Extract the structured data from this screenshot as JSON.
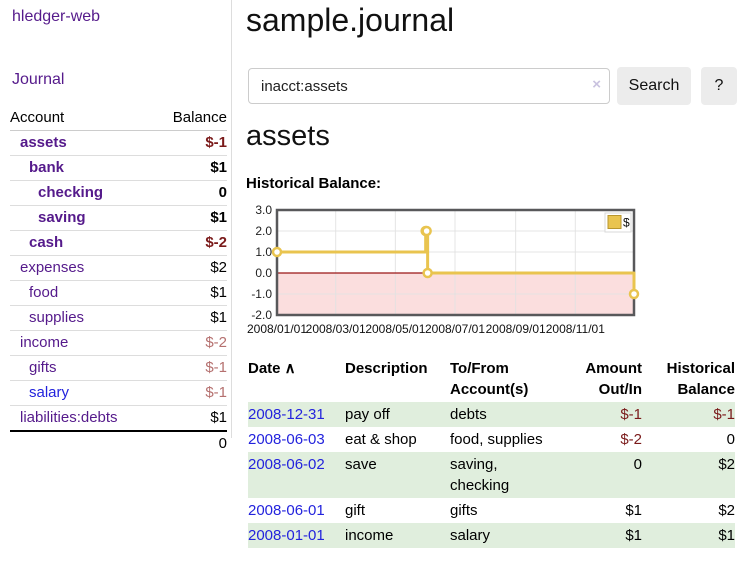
{
  "colors": {
    "link_purple": "#551a8b",
    "link_blue": "#2323dd",
    "negative_dark": "#7a1a1a",
    "negative_light": "#b5706f",
    "row_green": "#e0eedd",
    "chart_line_gold": "#e9c44f",
    "chart_negative_fill": "#fbdede",
    "chart_zero_line": "#9a1616",
    "chart_border": "#58585a",
    "chart_grid": "#e2e2e2"
  },
  "app_title": "hledger-web",
  "sidebar": {
    "journal_link": "Journal",
    "table": {
      "account_header": "Account",
      "balance_header": "Balance",
      "rows": [
        {
          "name": "assets",
          "indent": 1,
          "bold": true,
          "link_color": "#551a8b",
          "balance": "$-1",
          "balance_color": "#7a1a1a",
          "balance_bold": true
        },
        {
          "name": "bank",
          "indent": 2,
          "bold": true,
          "link_color": "#551a8b",
          "balance": "$1",
          "balance_color": "#000000",
          "balance_bold": true
        },
        {
          "name": "checking",
          "indent": 3,
          "bold": true,
          "link_color": "#551a8b",
          "balance": "0",
          "balance_color": "#000000",
          "balance_bold": true
        },
        {
          "name": "saving",
          "indent": 3,
          "bold": true,
          "link_color": "#551a8b",
          "balance": "$1",
          "balance_color": "#000000",
          "balance_bold": true
        },
        {
          "name": "cash",
          "indent": 2,
          "bold": true,
          "link_color": "#551a8b",
          "balance": "$-2",
          "balance_color": "#7a1a1a",
          "balance_bold": true
        },
        {
          "name": "expenses",
          "indent": 1,
          "bold": false,
          "link_color": "#551a8b",
          "balance": "$2",
          "balance_color": "#000000",
          "balance_bold": false
        },
        {
          "name": "food",
          "indent": 2,
          "bold": false,
          "link_color": "#551a8b",
          "balance": "$1",
          "balance_color": "#000000",
          "balance_bold": false
        },
        {
          "name": "supplies",
          "indent": 2,
          "bold": false,
          "link_color": "#551a8b",
          "balance": "$1",
          "balance_color": "#000000",
          "balance_bold": false
        },
        {
          "name": "income",
          "indent": 1,
          "bold": false,
          "link_color": "#551a8b",
          "balance": "$-2",
          "balance_color": "#b5706f",
          "balance_bold": false
        },
        {
          "name": "gifts",
          "indent": 2,
          "bold": false,
          "link_color": "#551a8b",
          "balance": "$-1",
          "balance_color": "#b5706f",
          "balance_bold": false
        },
        {
          "name": "salary",
          "indent": 2,
          "bold": false,
          "link_color": "#2323dd",
          "balance": "$-1",
          "balance_color": "#b5706f",
          "balance_bold": false
        },
        {
          "name": "liabilities:debts",
          "indent": 1,
          "bold": false,
          "link_color": "#551a8b",
          "balance": "$1",
          "balance_color": "#000000",
          "balance_bold": false
        }
      ],
      "total": "0"
    }
  },
  "main": {
    "title": "sample.journal",
    "search": {
      "value": "inacct:assets",
      "clear_icon": "×",
      "search_button": "Search",
      "help_button": "?"
    },
    "account_heading": "assets",
    "chart_title": "Historical Balance:"
  },
  "chart_data": {
    "type": "line",
    "step": "after",
    "title": "Historical Balance",
    "series": [
      {
        "name": "$",
        "points": [
          {
            "x": "2008-01-01",
            "y": 1
          },
          {
            "x": "2008-06-01",
            "y": 2
          },
          {
            "x": "2008-06-02",
            "y": 2
          },
          {
            "x": "2008-06-03",
            "y": 0
          },
          {
            "x": "2008-12-31",
            "y": -1
          }
        ]
      }
    ],
    "x_start": "2008-01-01",
    "x_end": "2008-12-31",
    "x_ticks": [
      "2008/01/01",
      "2008/03/01",
      "2008/05/01",
      "2008/07/01",
      "2008/09/01",
      "2008/11/01"
    ],
    "y_ticks": [
      3.0,
      2.0,
      1.0,
      0.0,
      -1.0,
      -2.0
    ],
    "y_tick_labels": [
      "3.0",
      "2.0",
      "1.0",
      "0.0",
      "-1.0",
      "-2.0"
    ],
    "ylim": [
      -2,
      3
    ],
    "grid": true,
    "negative_region_shaded": true,
    "legend": {
      "position": "top-right",
      "entries": [
        "$"
      ]
    }
  },
  "register": {
    "columns": [
      {
        "label": "Date",
        "sort_icon": "∧",
        "align": "left"
      },
      {
        "label": "Description",
        "align": "left"
      },
      {
        "label": "To/From Account(s)",
        "align": "left"
      },
      {
        "label": "Amount Out/In",
        "align": "right"
      },
      {
        "label": "Historical Balance",
        "align": "right"
      }
    ],
    "rows": [
      {
        "date": "2008-12-31",
        "description": "pay off",
        "accounts": "debts",
        "amount": "$-1",
        "amount_color": "#7a1a1a",
        "balance": "$-1",
        "balance_color": "#7a1a1a",
        "highlight": true
      },
      {
        "date": "2008-06-03",
        "description": "eat & shop",
        "accounts": "food, supplies",
        "amount": "$-2",
        "amount_color": "#7a1a1a",
        "balance": "0",
        "balance_color": "#000000",
        "highlight": false
      },
      {
        "date": "2008-06-02",
        "description": "save",
        "accounts": "saving, checking",
        "amount": "0",
        "amount_color": "#000000",
        "balance": "$2",
        "balance_color": "#000000",
        "highlight": true
      },
      {
        "date": "2008-06-01",
        "description": "gift",
        "accounts": "gifts",
        "amount": "$1",
        "amount_color": "#000000",
        "balance": "$2",
        "balance_color": "#000000",
        "highlight": false
      },
      {
        "date": "2008-01-01",
        "description": "income",
        "accounts": "salary",
        "amount": "$1",
        "amount_color": "#000000",
        "balance": "$1",
        "balance_color": "#000000",
        "highlight": true
      }
    ]
  }
}
